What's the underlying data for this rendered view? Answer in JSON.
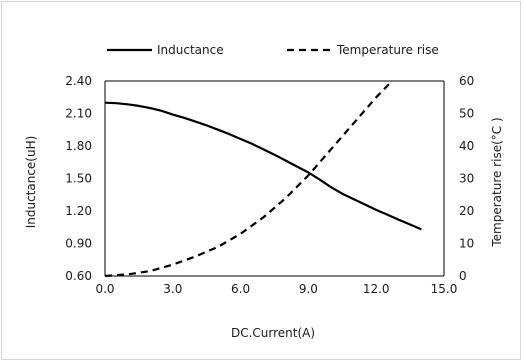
{
  "chart_data": {
    "type": "line",
    "xlabel": "DC.Current(A)",
    "ylabel_left": "Inductance(uH)",
    "ylabel_right": "Temperature rise(°C )",
    "xlim": [
      0,
      15
    ],
    "ylim_left": [
      0.6,
      2.4
    ],
    "ylim_right": [
      0,
      60
    ],
    "x_ticks": [
      "0.0",
      "3.0",
      "6.0",
      "9.0",
      "12.0",
      "15.0"
    ],
    "y_left_ticks": [
      "0.60",
      "0.90",
      "1.20",
      "1.50",
      "1.80",
      "2.10",
      "2.40"
    ],
    "y_right_ticks": [
      "0",
      "10",
      "20",
      "30",
      "40",
      "50",
      "60"
    ],
    "grid": false,
    "legend_position": "top",
    "series": [
      {
        "name": "Inductance",
        "axis": "left",
        "style": "solid",
        "color": "#000000",
        "points": [
          [
            0,
            2.2
          ],
          [
            0.5,
            2.195
          ],
          [
            1,
            2.185
          ],
          [
            1.5,
            2.17
          ],
          [
            2,
            2.15
          ],
          [
            2.5,
            2.125
          ],
          [
            3,
            2.09
          ],
          [
            3.5,
            2.06
          ],
          [
            4,
            2.025
          ],
          [
            4.5,
            1.99
          ],
          [
            5,
            1.95
          ],
          [
            5.5,
            1.91
          ],
          [
            6,
            1.865
          ],
          [
            6.5,
            1.82
          ],
          [
            7,
            1.77
          ],
          [
            7.5,
            1.72
          ],
          [
            8,
            1.665
          ],
          [
            8.5,
            1.61
          ],
          [
            9,
            1.555
          ],
          [
            9.5,
            1.49
          ],
          [
            10,
            1.42
          ],
          [
            10.5,
            1.36
          ],
          [
            11,
            1.31
          ],
          [
            11.5,
            1.26
          ],
          [
            12,
            1.21
          ],
          [
            12.5,
            1.165
          ],
          [
            13,
            1.12
          ],
          [
            13.5,
            1.075
          ],
          [
            14,
            1.03
          ]
        ]
      },
      {
        "name": "Temperature rise",
        "axis": "right",
        "style": "dashed",
        "color": "#000000",
        "points": [
          [
            0,
            0
          ],
          [
            1,
            0.5
          ],
          [
            2,
            1.5
          ],
          [
            3,
            3.5
          ],
          [
            4,
            6
          ],
          [
            5,
            9
          ],
          [
            6,
            13
          ],
          [
            7,
            18
          ],
          [
            8,
            24
          ],
          [
            9,
            31
          ],
          [
            10,
            39
          ],
          [
            11,
            47
          ],
          [
            12,
            55
          ],
          [
            12.7,
            60
          ]
        ]
      }
    ]
  }
}
